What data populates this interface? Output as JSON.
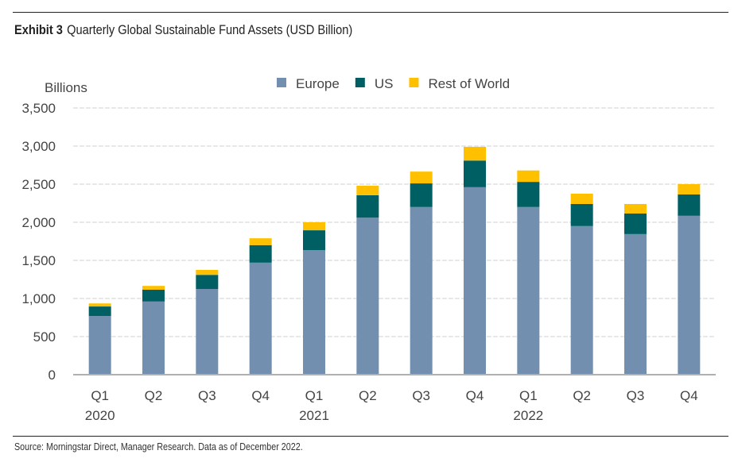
{
  "header": {
    "exhibit": "Exhibit 3",
    "title": "Quarterly Global Sustainable Fund Assets (USD Billion)"
  },
  "footer": {
    "source": "Source: Morningstar Direct, Manager Research. Data as of December 2022."
  },
  "chart_data": {
    "type": "bar",
    "stacked": true,
    "title": "Quarterly Global Sustainable Fund Assets (USD Billion)",
    "ylabel": "Billions",
    "xlabel": "",
    "ylim": [
      0,
      3500
    ],
    "yticks": [
      0,
      500,
      1000,
      1500,
      2000,
      2500,
      3000,
      3500
    ],
    "ytick_labels": [
      "0",
      "500",
      "1,000",
      "1,500",
      "2,000",
      "2,500",
      "3,000",
      "3,500"
    ],
    "grid": true,
    "legend_position": "top-center",
    "categories": [
      "Q1 2020",
      "Q2 2020",
      "Q3 2020",
      "Q4 2020",
      "Q1 2021",
      "Q2 2021",
      "Q3 2021",
      "Q4 2021",
      "Q1 2022",
      "Q2 2022",
      "Q3 2022",
      "Q4 2022"
    ],
    "x_tick_labels": [
      {
        "line1": "Q1",
        "line2": "2020"
      },
      {
        "line1": "Q2",
        "line2": ""
      },
      {
        "line1": "Q3",
        "line2": ""
      },
      {
        "line1": "Q4",
        "line2": ""
      },
      {
        "line1": "Q1",
        "line2": "2021"
      },
      {
        "line1": "Q2",
        "line2": ""
      },
      {
        "line1": "Q3",
        "line2": ""
      },
      {
        "line1": "Q4",
        "line2": ""
      },
      {
        "line1": "Q1",
        "line2": "2022"
      },
      {
        "line1": "Q2",
        "line2": ""
      },
      {
        "line1": "Q3",
        "line2": ""
      },
      {
        "line1": "Q4",
        "line2": ""
      }
    ],
    "series": [
      {
        "name": "Europe",
        "color": "#738fb0",
        "values": [
          770,
          960,
          1125,
          1470,
          1635,
          2060,
          2200,
          2460,
          2200,
          1950,
          1845,
          2085
        ]
      },
      {
        "name": "US",
        "color": "#005f63",
        "values": [
          125,
          155,
          185,
          230,
          260,
          295,
          310,
          350,
          330,
          290,
          270,
          280
        ]
      },
      {
        "name": "Rest of World",
        "color": "#ffc000",
        "values": [
          40,
          50,
          65,
          90,
          105,
          125,
          155,
          180,
          150,
          135,
          125,
          135
        ]
      }
    ]
  }
}
